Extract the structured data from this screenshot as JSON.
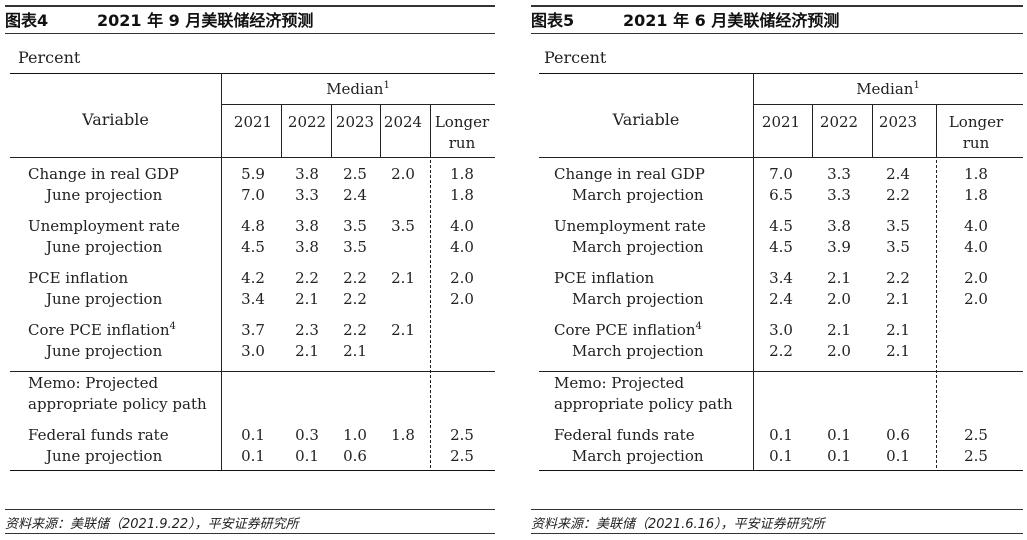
{
  "panels": [
    {
      "figure_no": "图表4",
      "title": "2021 年 9 月美联储经济预测",
      "percent_label": "Percent",
      "median_label": "Median",
      "median_sup": "1",
      "variable_label": "Variable",
      "years": [
        "2021",
        "2022",
        "2023",
        "2024"
      ],
      "longer_run": [
        "Longer",
        "run"
      ],
      "rows": [
        {
          "label": "Change in real GDP",
          "sup": "",
          "values": [
            "5.9",
            "3.8",
            "2.5",
            "2.0"
          ],
          "lr": "1.8"
        },
        {
          "label": "June projection",
          "sup": "",
          "values": [
            "7.0",
            "3.3",
            "2.4",
            ""
          ],
          "lr": "1.8"
        },
        {
          "label": "Unemployment rate",
          "sup": "",
          "values": [
            "4.8",
            "3.8",
            "3.5",
            "3.5"
          ],
          "lr": "4.0"
        },
        {
          "label": "June projection",
          "sup": "",
          "values": [
            "4.5",
            "3.8",
            "3.5",
            ""
          ],
          "lr": "4.0"
        },
        {
          "label": "PCE inflation",
          "sup": "",
          "values": [
            "4.2",
            "2.2",
            "2.2",
            "2.1"
          ],
          "lr": "2.0"
        },
        {
          "label": "June projection",
          "sup": "",
          "values": [
            "3.4",
            "2.1",
            "2.2",
            ""
          ],
          "lr": "2.0"
        },
        {
          "label": "Core PCE inflation",
          "sup": "4",
          "values": [
            "3.7",
            "2.3",
            "2.2",
            "2.1"
          ],
          "lr": ""
        },
        {
          "label": "June projection",
          "sup": "",
          "values": [
            "3.0",
            "2.1",
            "2.1",
            ""
          ],
          "lr": ""
        }
      ],
      "memo": [
        "Memo: Projected",
        "appropriate policy path"
      ],
      "ff_rows": [
        {
          "label": "Federal funds rate",
          "values": [
            "0.1",
            "0.3",
            "1.0",
            "1.8"
          ],
          "lr": "2.5"
        },
        {
          "label": "June projection",
          "values": [
            "0.1",
            "0.1",
            "0.6",
            ""
          ],
          "lr": "2.5"
        }
      ],
      "source": "资料来源：美联储（2021.9.22），平安证券研究所"
    },
    {
      "figure_no": "图表5",
      "title": "2021 年 6 月美联储经济预测",
      "percent_label": "Percent",
      "median_label": "Median",
      "median_sup": "1",
      "variable_label": "Variable",
      "years": [
        "2021",
        "2022",
        "2023"
      ],
      "longer_run": [
        "Longer",
        "run"
      ],
      "rows": [
        {
          "label": "Change in real GDP",
          "sup": "",
          "values": [
            "7.0",
            "3.3",
            "2.4"
          ],
          "lr": "1.8"
        },
        {
          "label": "March projection",
          "sup": "",
          "values": [
            "6.5",
            "3.3",
            "2.2"
          ],
          "lr": "1.8"
        },
        {
          "label": "Unemployment rate",
          "sup": "",
          "values": [
            "4.5",
            "3.8",
            "3.5"
          ],
          "lr": "4.0"
        },
        {
          "label": "March projection",
          "sup": "",
          "values": [
            "4.5",
            "3.9",
            "3.5"
          ],
          "lr": "4.0"
        },
        {
          "label": "PCE inflation",
          "sup": "",
          "values": [
            "3.4",
            "2.1",
            "2.2"
          ],
          "lr": "2.0"
        },
        {
          "label": "March projection",
          "sup": "",
          "values": [
            "2.4",
            "2.0",
            "2.1"
          ],
          "lr": "2.0"
        },
        {
          "label": "Core PCE inflation",
          "sup": "4",
          "values": [
            "3.0",
            "2.1",
            "2.1"
          ],
          "lr": ""
        },
        {
          "label": "March projection",
          "sup": "",
          "values": [
            "2.2",
            "2.0",
            "2.1"
          ],
          "lr": ""
        }
      ],
      "memo": [
        "Memo: Projected",
        "appropriate policy path"
      ],
      "ff_rows": [
        {
          "label": "Federal funds rate",
          "values": [
            "0.1",
            "0.1",
            "0.6"
          ],
          "lr": "2.5"
        },
        {
          "label": "March projection",
          "values": [
            "0.1",
            "0.1",
            "0.1"
          ],
          "lr": "2.5"
        }
      ],
      "source": "资料来源：美联储（2021.6.16），平安证券研究所"
    }
  ]
}
